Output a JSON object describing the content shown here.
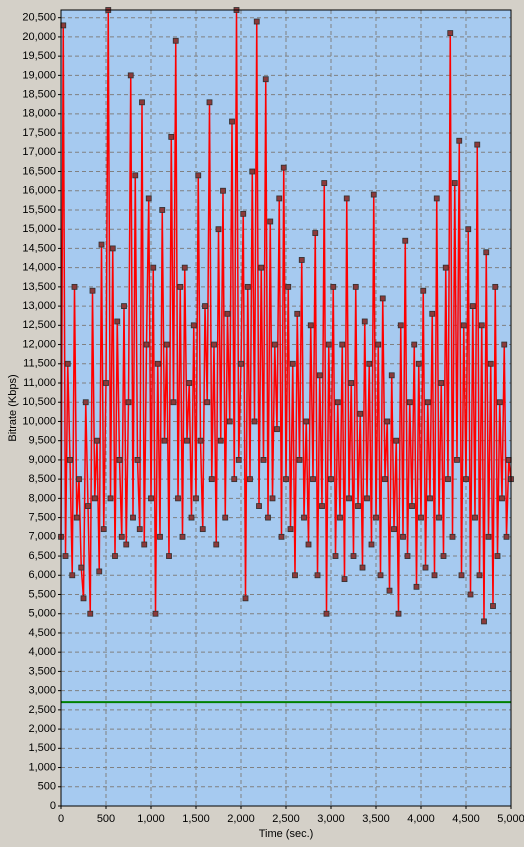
{
  "chart_data": {
    "type": "line",
    "x_label": "Time (sec.)",
    "y_label": "Bitrate (Kbps)",
    "xlim": [
      0,
      5000
    ],
    "ylim": [
      0,
      20700
    ],
    "xticks": [
      0,
      500,
      {
        "value": 1000,
        "label": "1,000"
      },
      {
        "value": 1500,
        "label": "1,500"
      },
      {
        "value": 2000,
        "label": "2,000"
      },
      {
        "value": 2500,
        "label": "2,500"
      },
      {
        "value": 3000,
        "label": "3,000"
      },
      {
        "value": 3500,
        "label": "3,500"
      },
      {
        "value": 4000,
        "label": "4,000"
      },
      {
        "value": 4500,
        "label": "4,500"
      },
      {
        "value": 5000,
        "label": "5,000"
      }
    ],
    "yticks": [
      0,
      500,
      {
        "value": 1000,
        "label": "1,000"
      },
      {
        "value": 1500,
        "label": "1,500"
      },
      {
        "value": 2000,
        "label": "2,000"
      },
      {
        "value": 2500,
        "label": "2,500"
      },
      {
        "value": 3000,
        "label": "3,000"
      },
      {
        "value": 3500,
        "label": "3,500"
      },
      {
        "value": 4000,
        "label": "4,000"
      },
      {
        "value": 4500,
        "label": "4,500"
      },
      {
        "value": 5000,
        "label": "5,000"
      },
      {
        "value": 5500,
        "label": "5,500"
      },
      {
        "value": 6000,
        "label": "6,000"
      },
      {
        "value": 6500,
        "label": "6,500"
      },
      {
        "value": 7000,
        "label": "7,000"
      },
      {
        "value": 7500,
        "label": "7,500"
      },
      {
        "value": 8000,
        "label": "8,000"
      },
      {
        "value": 8500,
        "label": "8,500"
      },
      {
        "value": 9000,
        "label": "9,000"
      },
      {
        "value": 9500,
        "label": "9,500"
      },
      {
        "value": 10000,
        "label": "10,000"
      },
      {
        "value": 10500,
        "label": "10,500"
      },
      {
        "value": 11000,
        "label": "11,000"
      },
      {
        "value": 11500,
        "label": "11,500"
      },
      {
        "value": 12000,
        "label": "12,000"
      },
      {
        "value": 12500,
        "label": "12,500"
      },
      {
        "value": 13000,
        "label": "13,000"
      },
      {
        "value": 13500,
        "label": "13,500"
      },
      {
        "value": 14000,
        "label": "14,000"
      },
      {
        "value": 14500,
        "label": "14,500"
      },
      {
        "value": 15000,
        "label": "15,000"
      },
      {
        "value": 15500,
        "label": "15,500"
      },
      {
        "value": 16000,
        "label": "16,000"
      },
      {
        "value": 16500,
        "label": "16,500"
      },
      {
        "value": 17000,
        "label": "17,000"
      },
      {
        "value": 17500,
        "label": "17,500"
      },
      {
        "value": 18000,
        "label": "18,000"
      },
      {
        "value": 18500,
        "label": "18,500"
      },
      {
        "value": 19000,
        "label": "19,000"
      },
      {
        "value": 19500,
        "label": "19,500"
      },
      {
        "value": 20000,
        "label": "20,000"
      },
      {
        "value": 20500,
        "label": "20,500"
      }
    ],
    "grid": true,
    "reference_line": {
      "value": 2700,
      "color": "#008000"
    },
    "x": [
      0,
      25,
      50,
      75,
      100,
      125,
      150,
      175,
      200,
      225,
      250,
      275,
      300,
      325,
      350,
      375,
      400,
      425,
      450,
      475,
      500,
      525,
      550,
      575,
      600,
      625,
      650,
      675,
      700,
      725,
      750,
      775,
      800,
      825,
      850,
      875,
      900,
      925,
      950,
      975,
      1000,
      1025,
      1050,
      1075,
      1100,
      1125,
      1150,
      1175,
      1200,
      1225,
      1250,
      1275,
      1300,
      1325,
      1350,
      1375,
      1400,
      1425,
      1450,
      1475,
      1500,
      1525,
      1550,
      1575,
      1600,
      1625,
      1650,
      1675,
      1700,
      1725,
      1750,
      1775,
      1800,
      1825,
      1850,
      1875,
      1900,
      1925,
      1950,
      1975,
      2000,
      2025,
      2050,
      2075,
      2100,
      2125,
      2150,
      2175,
      2200,
      2225,
      2250,
      2275,
      2300,
      2325,
      2350,
      2375,
      2400,
      2425,
      2450,
      2475,
      2500,
      2525,
      2550,
      2575,
      2600,
      2625,
      2650,
      2675,
      2700,
      2725,
      2750,
      2775,
      2800,
      2825,
      2850,
      2875,
      2900,
      2925,
      2950,
      2975,
      3000,
      3025,
      3050,
      3075,
      3100,
      3125,
      3150,
      3175,
      3200,
      3225,
      3250,
      3275,
      3300,
      3325,
      3350,
      3375,
      3400,
      3425,
      3450,
      3475,
      3500,
      3525,
      3550,
      3575,
      3600,
      3625,
      3650,
      3675,
      3700,
      3725,
      3750,
      3775,
      3800,
      3825,
      3850,
      3875,
      3900,
      3925,
      3950,
      3975,
      4000,
      4025,
      4050,
      4075,
      4100,
      4125,
      4150,
      4175,
      4200,
      4225,
      4250,
      4275,
      4300,
      4325,
      4350,
      4375,
      4400,
      4425,
      4450,
      4475,
      4500,
      4525,
      4550,
      4575,
      4600,
      4625,
      4650,
      4675,
      4700,
      4725,
      4750,
      4775,
      4800,
      4825,
      4850,
      4875,
      4900,
      4925,
      4950,
      4975,
      5000
    ],
    "series": [
      {
        "color": "#ff0000",
        "values": [
          7000,
          20300,
          6500,
          11500,
          9000,
          6000,
          13500,
          7500,
          8500,
          6200,
          5400,
          10500,
          7800,
          5000,
          13400,
          8000,
          9500,
          6100,
          14600,
          7200,
          11000,
          20700,
          8000,
          14500,
          6500,
          12600,
          9000,
          7000,
          13000,
          6800,
          10500,
          19000,
          7500,
          16400,
          9000,
          7200,
          18300,
          6800,
          12000,
          15800,
          8000,
          14000,
          5000,
          11500,
          7000,
          15500,
          9500,
          12000,
          6500,
          17400,
          10500,
          19900,
          8000,
          13500,
          7000,
          14000,
          9500,
          11000,
          7500,
          12500,
          8000,
          16400,
          9500,
          7200,
          13000,
          10500,
          18300,
          8500,
          12000,
          6800,
          15000,
          9500,
          16000,
          7500,
          12800,
          10000,
          17800,
          8500,
          20700,
          9000,
          11500,
          15400,
          5400,
          13500,
          8500,
          16500,
          10000,
          20400,
          7800,
          14000,
          9000,
          18900,
          7500,
          15200,
          8000,
          12000,
          9800,
          15800,
          7000,
          16600,
          8500,
          13500,
          7200,
          11500,
          6000,
          12800,
          9000,
          14200,
          7500,
          10000,
          6800,
          12500,
          8500,
          14900,
          6000,
          11200,
          7800,
          16200,
          5000,
          12000,
          8500,
          13500,
          6500,
          10500,
          7500,
          12000,
          5900,
          15800,
          8000,
          11000,
          6500,
          13500,
          7800,
          10200,
          6200,
          12600,
          8000,
          11500,
          6800,
          15900,
          7500,
          12000,
          6000,
          13200,
          8500,
          10000,
          5600,
          11200,
          7200,
          9500,
          5000,
          12500,
          7000,
          14700,
          6500,
          10500,
          7800,
          12000,
          5700,
          11500,
          7500,
          13400,
          6200,
          10500,
          8000,
          12800,
          6000,
          15800,
          7500,
          11000,
          6500,
          14000,
          8500,
          20100,
          7000,
          16200,
          9000,
          17300,
          6000,
          12500,
          8500,
          15000,
          5500,
          13000,
          7500,
          17200,
          6000,
          12500,
          4800,
          14400,
          7000,
          11500,
          5200,
          13500,
          6500,
          10500,
          8000,
          12000,
          7000,
          9000,
          8500
        ]
      }
    ]
  }
}
